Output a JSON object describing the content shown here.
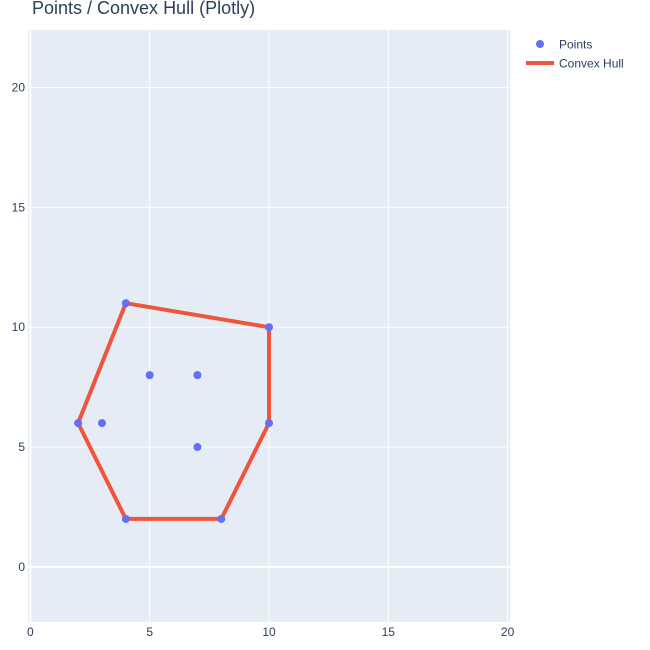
{
  "chart_data": {
    "type": "scatter",
    "title": "Points / Convex Hull (Plotly)",
    "xlabel": "",
    "ylabel": "",
    "xlim": [
      -0.1,
      20.1
    ],
    "ylim": [
      -2.3,
      22.4
    ],
    "x_ticks": [
      0,
      5,
      10,
      15,
      20
    ],
    "y_ticks": [
      0,
      5,
      10,
      15,
      20
    ],
    "grid": true,
    "legend_position": "top-right",
    "series": [
      {
        "name": "Points",
        "mode": "markers",
        "color": "#636efa",
        "x": [
          2,
          3,
          4,
          4,
          5,
          7,
          7,
          8,
          10,
          10
        ],
        "y": [
          6,
          6,
          2,
          11,
          8,
          8,
          5,
          2,
          6,
          10
        ]
      },
      {
        "name": "Convex Hull",
        "mode": "lines",
        "color": "#ef553b",
        "x": [
          4,
          8,
          10,
          10,
          4,
          2,
          4
        ],
        "y": [
          2,
          2,
          6,
          10,
          11,
          6,
          2
        ]
      }
    ]
  },
  "colors": {
    "plot_background": "#e5ecf6",
    "gridline": "#ffffff",
    "text": "#2a3f5f"
  }
}
